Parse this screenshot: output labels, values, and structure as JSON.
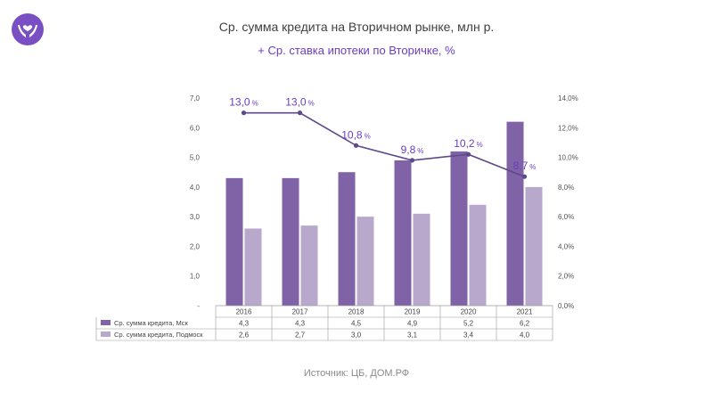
{
  "header": {
    "title": "Ср. сумма кредита на Вторичном рынке, млн р.",
    "subtitle": "+ Ср. ставка ипотеки по Вторичке, %"
  },
  "logo": {
    "icon": "hands-heart-icon"
  },
  "footer": {
    "source": "Источник: ЦБ, ДОМ.РФ"
  },
  "colors": {
    "dark_bar": "#8062a6",
    "light_bar": "#b8a9cc",
    "line": "#5e4a8a",
    "label": "#6a3ec0"
  },
  "chart_data": {
    "type": "bar",
    "categories": [
      "2016",
      "2017",
      "2018",
      "2019",
      "2020",
      "2021"
    ],
    "series": [
      {
        "name": "Ср. сумма кредита, Мск",
        "values": [
          4.3,
          4.3,
          4.5,
          4.9,
          5.2,
          6.2
        ],
        "value_labels": [
          "4,3",
          "4,3",
          "4,5",
          "4,9",
          "5,2",
          "6,2"
        ]
      },
      {
        "name": "Ср. сумма кредита, Подмоск",
        "values": [
          2.6,
          2.7,
          3.0,
          3.1,
          3.4,
          4.0
        ],
        "value_labels": [
          "2,6",
          "2,7",
          "3,0",
          "3,1",
          "3,4",
          "4,0"
        ]
      }
    ],
    "line": {
      "values": [
        13.0,
        13.0,
        10.8,
        9.8,
        10.2,
        8.7
      ],
      "value_labels": [
        "13,0",
        "13,0",
        "10,8",
        "9,8",
        "10,2",
        "8,7"
      ],
      "unit": "%"
    },
    "ylim": [
      0,
      7
    ],
    "y_ticks": [
      "-",
      "1,0",
      "2,0",
      "3,0",
      "4,0",
      "5,0",
      "6,0",
      "7,0"
    ],
    "y2lim": [
      0,
      14
    ],
    "y2_ticks": [
      "0,0%",
      "2,0%",
      "4,0%",
      "6,0%",
      "8,0%",
      "10,0%",
      "12,0%",
      "14,0%"
    ],
    "data_table": true
  }
}
